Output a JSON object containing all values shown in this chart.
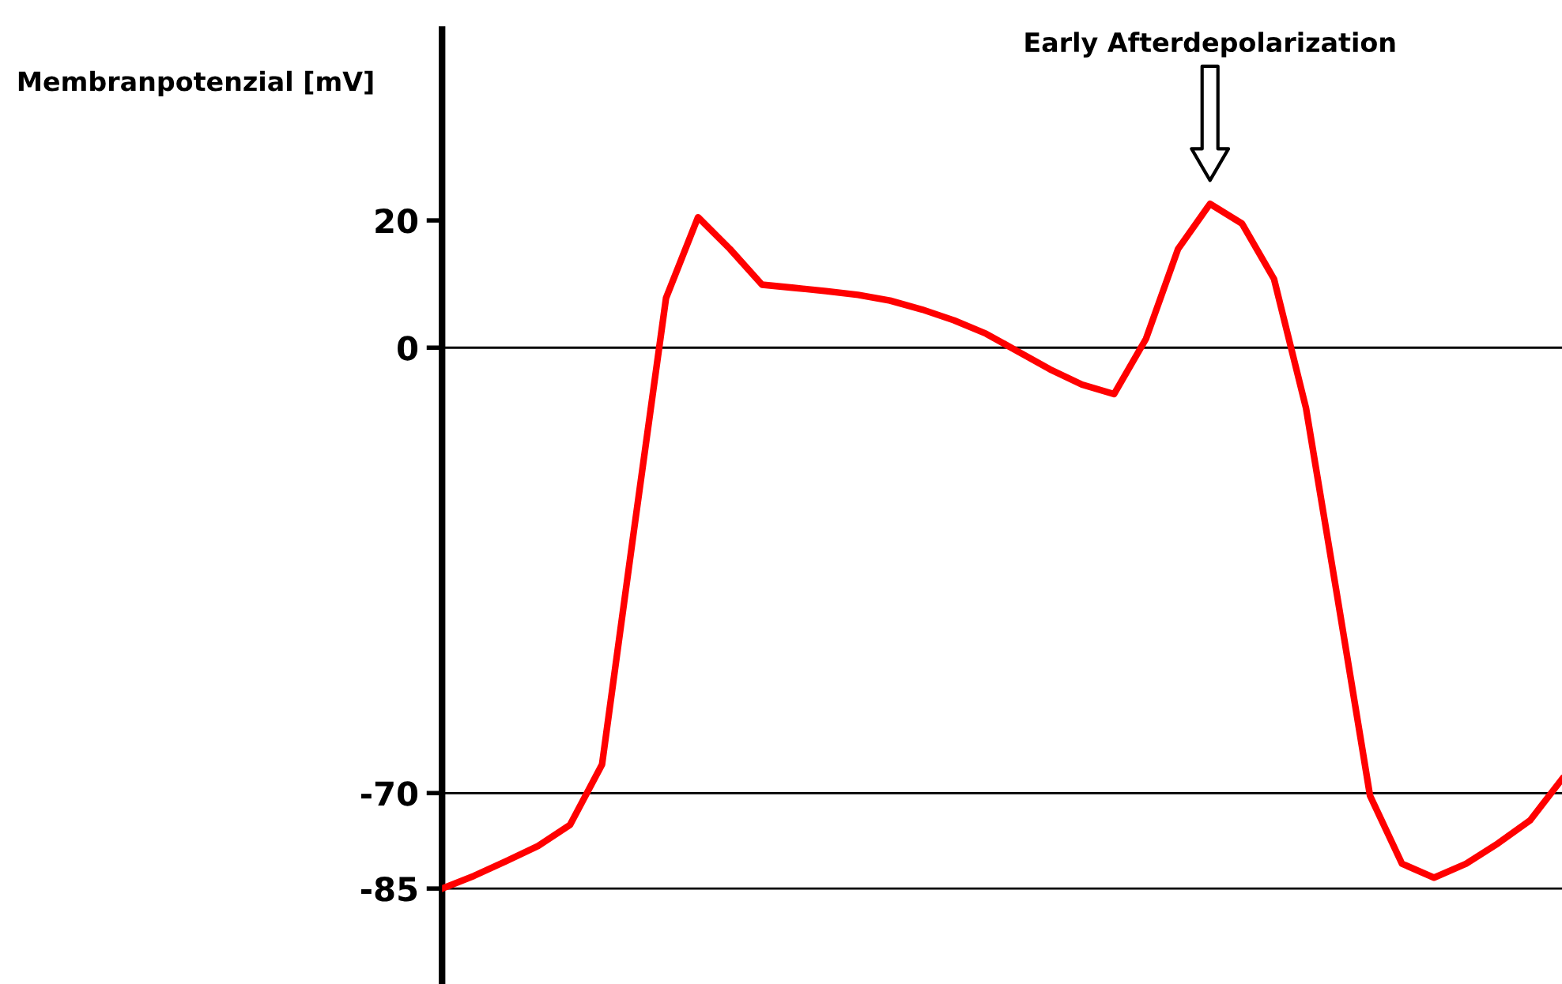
{
  "chart_data": {
    "type": "line",
    "ylabel": "Membranpotenzial [mV]",
    "annotations": [
      "Early Afterdepolarization"
    ],
    "categories": [
      null,
      null,
      null,
      null,
      null,
      null,
      null,
      null,
      null,
      null,
      null,
      null,
      null,
      null,
      null,
      null,
      null,
      null,
      null,
      null,
      null,
      null,
      null,
      null,
      null,
      null,
      null,
      null,
      null,
      null,
      null,
      null,
      null,
      null,
      null,
      null
    ],
    "series": [
      {
        "color": "#ff0000",
        "values": [
          -85,
          -83,
          -80.7,
          -78.3,
          -75,
          -65.5,
          -28.6,
          7.8,
          20.5,
          15.5,
          9.9,
          9.4,
          8.9,
          8.3,
          7.4,
          6,
          4.3,
          2.2,
          -0.6,
          -3.4,
          -5.8,
          -7.3,
          1.4,
          15.5,
          22.6,
          19.5,
          10.8,
          -9.5,
          -39.8,
          -70.4,
          -81.1,
          -83.3,
          -81.1,
          -77.9,
          -74.3,
          -67.8
        ]
      }
    ],
    "ylim": [
      -100,
      50
    ],
    "yticks": [
      20,
      0,
      -70,
      -85
    ],
    "ref_lines": [
      {
        "axis": "y",
        "value": 0,
        "color": "#000000"
      },
      {
        "axis": "y",
        "value": -70,
        "color": "#000000"
      },
      {
        "axis": "y",
        "value": -85,
        "color": "#000000"
      }
    ],
    "tick_labels": "y",
    "grid": false,
    "legend": false,
    "marker": "none",
    "line_style": "solid"
  }
}
